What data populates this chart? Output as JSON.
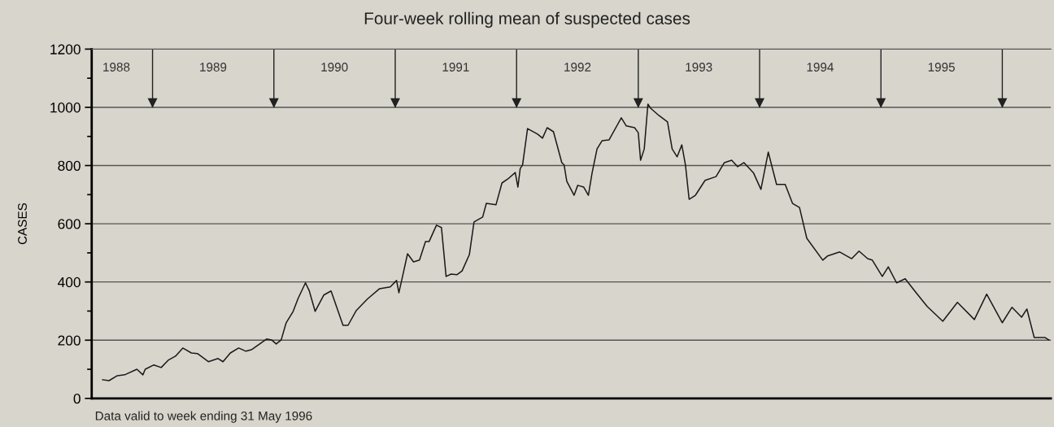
{
  "chart_data": {
    "type": "line",
    "title": "Four-week rolling mean of suspected cases",
    "ylabel": "CASES",
    "xlim": [
      "1988-07-02",
      "1996-05-26"
    ],
    "xticks": [
      {
        "value": "1988-09-14",
        "label": "1988"
      },
      {
        "value": "1989-07-02",
        "label": "1989"
      },
      {
        "value": "1990-07-02",
        "label": "1990"
      },
      {
        "value": "1991-07-02",
        "label": "1991"
      },
      {
        "value": "1992-07-02",
        "label": "1992"
      },
      {
        "value": "1993-07-02",
        "label": "1993"
      },
      {
        "value": "1994-07-02",
        "label": "1994"
      },
      {
        "value": "1995-07-02",
        "label": "1995"
      }
    ],
    "ylim": [
      0,
      1200
    ],
    "yticks": [
      0,
      200,
      400,
      600,
      800,
      1000,
      1200
    ],
    "grid": "y",
    "series": [
      {
        "color": "#1a1a1a",
        "x": [
          "1988-08-04",
          "1988-08-23",
          "1988-09-17",
          "1988-10-09",
          "1988-11-15",
          "1988-12-03",
          "1988-12-10",
          "1989-01-05",
          "1989-01-27",
          "1989-02-17",
          "1989-03-11",
          "1989-04-02",
          "1989-04-28",
          "1989-05-16",
          "1989-06-18",
          "1989-07-17",
          "1989-08-01",
          "1989-08-23",
          "1989-09-17",
          "1989-10-09",
          "1989-10-27",
          "1989-12-10",
          "1989-12-25",
          "1990-01-08",
          "1990-01-23",
          "1990-02-07",
          "1990-02-28",
          "1990-03-15",
          "1990-04-06",
          "1990-04-17",
          "1990-05-05",
          "1990-05-31",
          "1990-06-22",
          "1990-07-28",
          "1990-08-12",
          "1990-09-06",
          "1990-10-09",
          "1990-11-15",
          "1990-12-17",
          "1991-01-05",
          "1991-01-12",
          "1991-01-23",
          "1991-02-07",
          "1991-02-25",
          "1991-03-15",
          "1991-04-02",
          "1991-04-13",
          "1991-05-05",
          "1991-05-20",
          "1991-06-03",
          "1991-06-18",
          "1991-07-06",
          "1991-07-21",
          "1991-08-12",
          "1991-08-26",
          "1991-09-21",
          "1991-10-02",
          "1991-10-31",
          "1991-11-18",
          "1991-12-06",
          "1991-12-28",
          "1992-01-05",
          "1992-01-12",
          "1992-01-19",
          "1992-02-03",
          "1992-03-04",
          "1992-03-19",
          "1992-04-02",
          "1992-04-21",
          "1992-05-16",
          "1992-05-23",
          "1992-05-31",
          "1992-06-22",
          "1992-07-03",
          "1992-07-21",
          "1992-08-04",
          "1992-08-15",
          "1992-08-30",
          "1992-09-14",
          "1992-10-05",
          "1992-11-11",
          "1992-11-26",
          "1992-12-21",
          "1993-01-01",
          "1993-01-08",
          "1993-01-19",
          "1993-01-30",
          "1993-02-07",
          "1993-03-04",
          "1993-03-30",
          "1993-04-13",
          "1993-04-28",
          "1993-05-12",
          "1993-05-23",
          "1993-06-03",
          "1993-06-22",
          "1993-07-21",
          "1993-08-23",
          "1993-09-17",
          "1993-10-09",
          "1993-10-27",
          "1993-11-15",
          "1993-12-14",
          "1994-01-05",
          "1994-01-27",
          "1994-02-21",
          "1994-03-19",
          "1994-04-10",
          "1994-05-01",
          "1994-05-23",
          "1994-07-10",
          "1994-07-24",
          "1994-08-30",
          "1994-10-05",
          "1994-10-27",
          "1994-11-22",
          "1994-12-06",
          "1995-01-05",
          "1995-01-23",
          "1995-02-17",
          "1995-03-15",
          "1995-04-17",
          "1995-05-20",
          "1995-07-06",
          "1995-08-19",
          "1995-10-09",
          "1995-11-15",
          "1996-01-01",
          "1996-01-30",
          "1996-02-28",
          "1996-03-15",
          "1996-04-06",
          "1996-05-09",
          "1996-05-20"
        ],
        "values": [
          64,
          61,
          78,
          81,
          100,
          81,
          100,
          115,
          106,
          131,
          145,
          173,
          156,
          154,
          126,
          137,
          126,
          156,
          173,
          162,
          168,
          204,
          201,
          187,
          201,
          260,
          299,
          344,
          397,
          371,
          299,
          355,
          369,
          251,
          251,
          302,
          341,
          377,
          383,
          405,
          363,
          419,
          497,
          469,
          475,
          539,
          539,
          595,
          587,
          419,
          427,
          425,
          438,
          494,
          606,
          623,
          670,
          665,
          740,
          754,
          776,
          726,
          790,
          802,
          927,
          908,
          894,
          930,
          916,
          810,
          802,
          746,
          698,
          732,
          726,
          698,
          774,
          857,
          885,
          888,
          964,
          936,
          930,
          913,
          818,
          857,
          1011,
          997,
          972,
          950,
          857,
          830,
          871,
          802,
          684,
          698,
          749,
          762,
          810,
          818,
          796,
          810,
          774,
          718,
          846,
          735,
          735,
          670,
          656,
          550,
          475,
          489,
          503,
          480,
          506,
          480,
          475,
          419,
          452,
          397,
          411,
          363,
          316,
          265,
          330,
          271,
          358,
          260,
          313,
          279,
          307,
          209,
          209,
          201
        ]
      }
    ],
    "ref_lines": [
      {
        "axis": "x",
        "value": "1989-01-01"
      },
      {
        "axis": "x",
        "value": "1990-01-01"
      },
      {
        "axis": "x",
        "value": "1991-01-01"
      },
      {
        "axis": "x",
        "value": "1992-01-01"
      },
      {
        "axis": "x",
        "value": "1993-01-01"
      },
      {
        "axis": "x",
        "value": "1994-01-01"
      },
      {
        "axis": "x",
        "value": "1995-01-01"
      },
      {
        "axis": "x",
        "value": "1996-01-01"
      }
    ],
    "annotations": [
      "Data valid to week ending 31 May 1996"
    ]
  }
}
